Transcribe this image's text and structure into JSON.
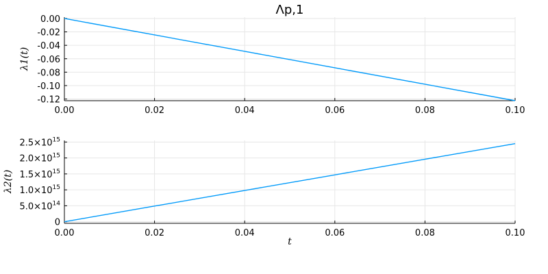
{
  "chart_data": [
    {
      "type": "line",
      "title": "Λp,1",
      "ylabel": "λ1(t)",
      "xlabel": "",
      "xlim": [
        0.0,
        0.1
      ],
      "ylim": [
        -0.1225,
        0.002
      ],
      "grid": true,
      "legend": "none",
      "color": "#009AFA",
      "x_ticks": [
        {
          "value": 0.0,
          "label": "0.00"
        },
        {
          "value": 0.02,
          "label": "0.02"
        },
        {
          "value": 0.04,
          "label": "0.04"
        },
        {
          "value": 0.06,
          "label": "0.06"
        },
        {
          "value": 0.08,
          "label": "0.08"
        },
        {
          "value": 0.1,
          "label": "0.10"
        }
      ],
      "y_ticks": [
        {
          "value": 0.0,
          "label": "0.00"
        },
        {
          "value": -0.02,
          "label": "-0.02"
        },
        {
          "value": -0.04,
          "label": "-0.04"
        },
        {
          "value": -0.06,
          "label": "-0.06"
        },
        {
          "value": -0.08,
          "label": "-0.08"
        },
        {
          "value": -0.1,
          "label": "-0.10"
        },
        {
          "value": -0.12,
          "label": "-0.12"
        }
      ],
      "series": [
        {
          "x": [
            0.0,
            0.02,
            0.04,
            0.06,
            0.08,
            0.1
          ],
          "y": [
            0.0,
            -0.0245,
            -0.049,
            -0.0735,
            -0.098,
            -0.1225
          ]
        }
      ]
    },
    {
      "type": "line",
      "title": "",
      "ylabel": "λ2(t)",
      "xlabel": "t",
      "xlim": [
        0.0,
        0.1
      ],
      "ylim": [
        -50000000000000.0,
        2550000000000000.0
      ],
      "grid": true,
      "legend": "none",
      "color": "#009AFA",
      "x_ticks": [
        {
          "value": 0.0,
          "label": "0.00"
        },
        {
          "value": 0.02,
          "label": "0.02"
        },
        {
          "value": 0.04,
          "label": "0.04"
        },
        {
          "value": 0.06,
          "label": "0.06"
        },
        {
          "value": 0.08,
          "label": "0.08"
        },
        {
          "value": 0.1,
          "label": "0.10"
        }
      ],
      "y_ticks": [
        {
          "value": 0,
          "mant": "0",
          "exp": ""
        },
        {
          "value": 500000000000000.0,
          "mant": "5.0×10",
          "exp": "14"
        },
        {
          "value": 1000000000000000.0,
          "mant": "1.0×10",
          "exp": "15"
        },
        {
          "value": 1500000000000000.0,
          "mant": "1.5×10",
          "exp": "15"
        },
        {
          "value": 2000000000000000.0,
          "mant": "2.0×10",
          "exp": "15"
        },
        {
          "value": 2500000000000000.0,
          "mant": "2.5×10",
          "exp": "15"
        }
      ],
      "series": [
        {
          "x": [
            0.0,
            0.02,
            0.04,
            0.06,
            0.08,
            0.1
          ],
          "y": [
            0.0,
            490000000000000.0,
            980000000000000.0,
            1470000000000000.0,
            1960000000000000.0,
            2450000000000000.0
          ]
        }
      ]
    }
  ]
}
